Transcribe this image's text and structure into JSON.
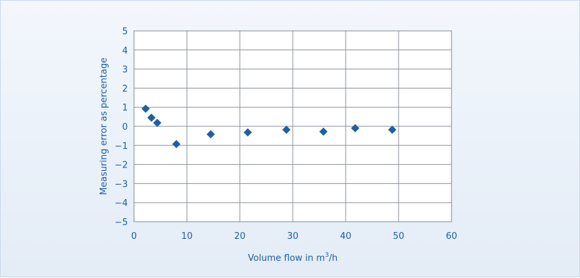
{
  "chart_data": {
    "type": "scatter",
    "title": "",
    "xlabel": "Volume flow in m",
    "xlabel_superscript": "3",
    "xlabel_suffix": "/h",
    "ylabel": "Measuring error as percentage",
    "xlim": [
      0,
      60
    ],
    "ylim": [
      -5,
      5
    ],
    "x_ticks": [
      0,
      10,
      20,
      30,
      40,
      50,
      60
    ],
    "y_ticks": [
      5,
      4,
      3,
      2,
      1,
      0,
      -1,
      -2,
      -3,
      -4,
      -5
    ],
    "x_tick_labels": [
      "0",
      "10",
      "20",
      "30",
      "40",
      "50",
      "60"
    ],
    "y_tick_labels": [
      "5",
      "4",
      "3",
      "2",
      "1",
      "0",
      "−1",
      "−2",
      "−3",
      "−4",
      "−5"
    ],
    "grid": true,
    "marker": "diamond",
    "color": "#1f5fa3",
    "points": [
      {
        "x": 2.2,
        "y": 0.92
      },
      {
        "x": 3.3,
        "y": 0.45
      },
      {
        "x": 4.4,
        "y": 0.18
      },
      {
        "x": 8.0,
        "y": -0.93
      },
      {
        "x": 14.5,
        "y": -0.42
      },
      {
        "x": 21.5,
        "y": -0.32
      },
      {
        "x": 28.8,
        "y": -0.18
      },
      {
        "x": 35.8,
        "y": -0.28
      },
      {
        "x": 41.8,
        "y": -0.1
      },
      {
        "x": 48.8,
        "y": -0.18
      }
    ]
  }
}
